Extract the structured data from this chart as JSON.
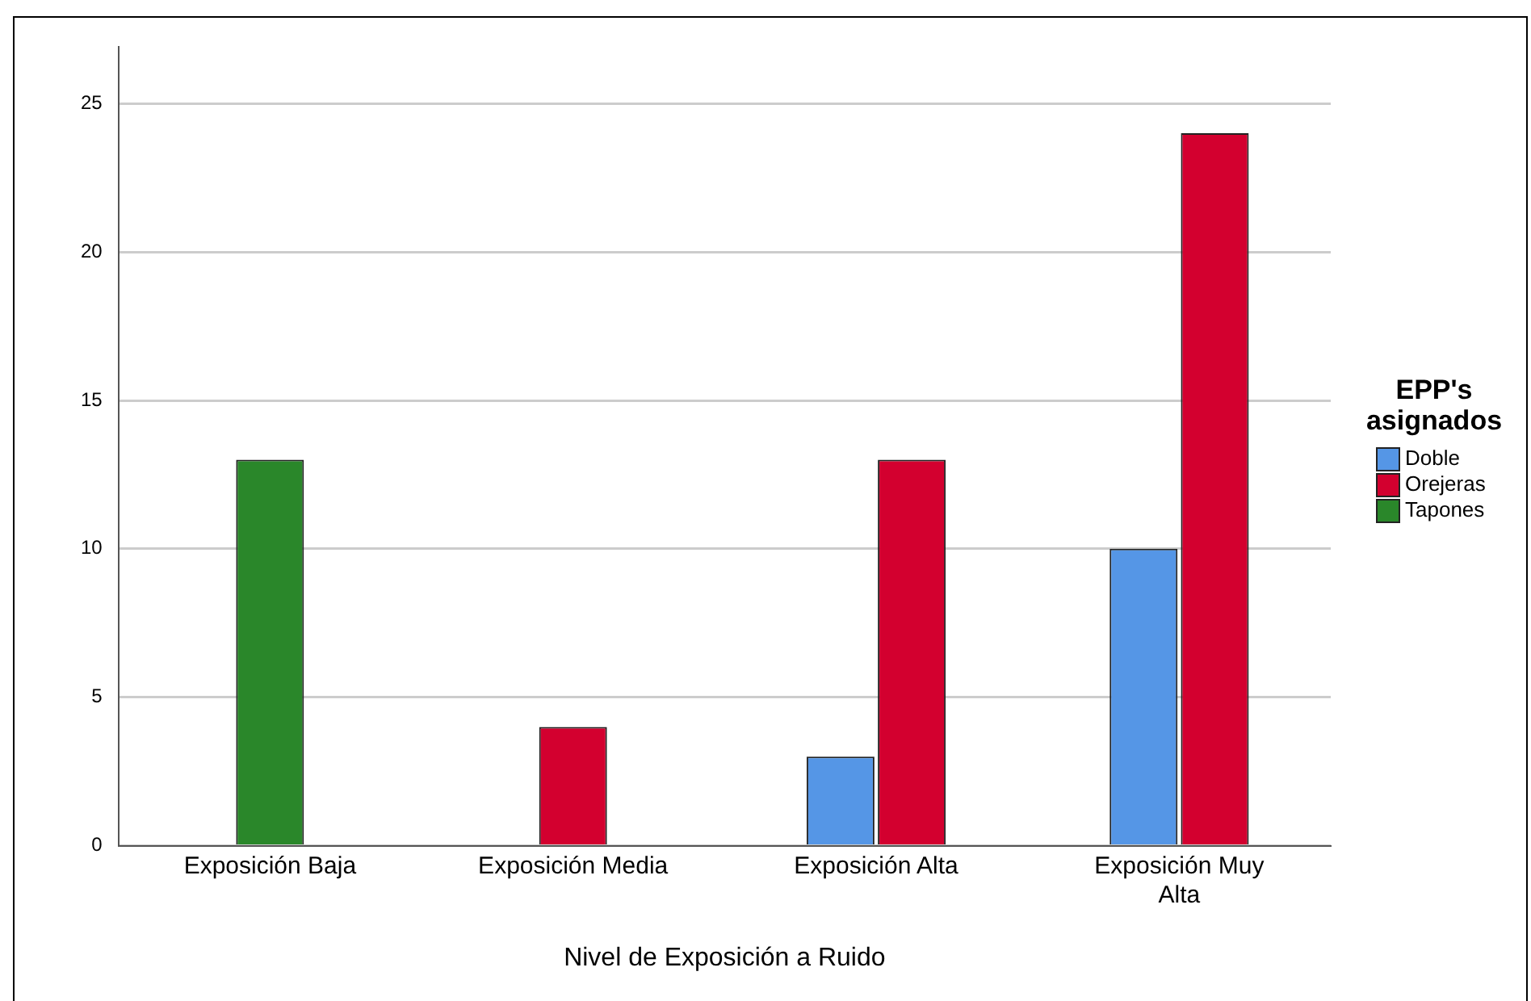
{
  "chart_data": {
    "type": "bar",
    "xlabel": "Nivel de Exposición a Ruido",
    "legend_title": "EPP's asignados",
    "categories": [
      "Exposición Baja",
      "Exposición Media",
      "Exposición Alta",
      "Exposición Muy Alta"
    ],
    "series": [
      {
        "name": "Doble",
        "color": "#5596e6",
        "values": [
          null,
          null,
          3,
          10
        ]
      },
      {
        "name": "Orejeras",
        "color": "#d3002f",
        "values": [
          null,
          4,
          13,
          24
        ]
      },
      {
        "name": "Tapones",
        "color": "#2a872a",
        "values": [
          13,
          null,
          null,
          null
        ]
      }
    ],
    "ylim": [
      0,
      26.9
    ],
    "yticks": [
      0,
      5,
      10,
      15,
      20,
      25
    ],
    "grid": "y",
    "legend": "right"
  }
}
